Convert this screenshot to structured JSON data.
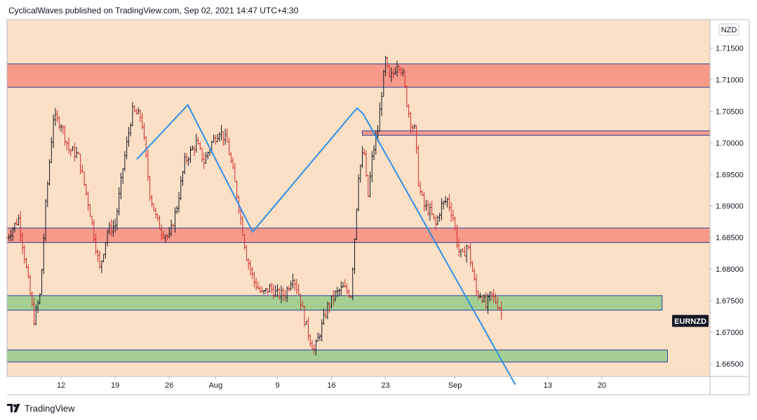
{
  "header": {
    "attribution": "CyclicalWaves published on TradingView.com, Sep 02, 2021 14:47 UTC+4:30"
  },
  "footer": {
    "brand": "TradingView"
  },
  "colors": {
    "background": "#fbe0c6",
    "resistance_zone": "#f89a8a",
    "support_zone": "#a5cf92",
    "zone_border": "#2b3f9a",
    "up_candle": "#131722",
    "down_candle": "#d12b2b",
    "trendline": "#2f8fe3"
  },
  "chart_data": {
    "type": "candlestick",
    "symbol": "EURNZD",
    "currency": "NZD",
    "x_ticks": [
      "12",
      "19",
      "26",
      "Aug",
      "9",
      "16",
      "23",
      "Sep",
      "13",
      "20"
    ],
    "x_tick_days": [
      12,
      19,
      26,
      32,
      40,
      47,
      54,
      63,
      75,
      82
    ],
    "x_range_days": [
      5,
      96
    ],
    "y_ticks": [
      "1.71500",
      "1.71000",
      "1.70500",
      "1.70000",
      "1.69500",
      "1.69000",
      "1.68500",
      "1.68000",
      "1.67500",
      "1.67000",
      "1.66500"
    ],
    "ylim": [
      1.663,
      1.7195
    ],
    "zones": [
      {
        "kind": "resistance",
        "low": 1.7088,
        "high": 1.7125,
        "day_start": 5,
        "day_end": 96
      },
      {
        "kind": "resistance",
        "low": 1.7012,
        "high": 1.7019,
        "day_start": 51,
        "day_end": 96
      },
      {
        "kind": "resistance",
        "low": 1.6842,
        "high": 1.6865,
        "day_start": 5,
        "day_end": 96
      },
      {
        "kind": "support",
        "low": 1.6735,
        "high": 1.6758,
        "day_start": 5,
        "day_end": 89.8
      },
      {
        "kind": "support",
        "low": 1.6653,
        "high": 1.6672,
        "day_start": 5,
        "day_end": 90.5
      }
    ],
    "zigzag": [
      {
        "day": 21.8,
        "price": 1.6974
      },
      {
        "day": 28.4,
        "price": 1.706
      },
      {
        "day": 36.8,
        "price": 1.6859
      },
      {
        "day": 50.3,
        "price": 1.7055
      },
      {
        "day": 51.1,
        "price": 1.7046
      },
      {
        "day": 70.8,
        "price": 1.6617
      }
    ],
    "path": [
      [
        5.0,
        1.685
      ],
      [
        6.5,
        1.688
      ],
      [
        7.5,
        1.68
      ],
      [
        8.5,
        1.672
      ],
      [
        9.3,
        1.676
      ],
      [
        10.0,
        1.69
      ],
      [
        11.0,
        1.704
      ],
      [
        12.0,
        1.703
      ],
      [
        13.0,
        1.699
      ],
      [
        14.2,
        1.698
      ],
      [
        15.6,
        1.69
      ],
      [
        17.0,
        1.68
      ],
      [
        18.0,
        1.686
      ],
      [
        19.0,
        1.687
      ],
      [
        20.0,
        1.696
      ],
      [
        21.2,
        1.705
      ],
      [
        22.4,
        1.704
      ],
      [
        23.5,
        1.692
      ],
      [
        24.3,
        1.688
      ],
      [
        25.0,
        1.686
      ],
      [
        26.0,
        1.685
      ],
      [
        27.0,
        1.69
      ],
      [
        28.0,
        1.697
      ],
      [
        29.5,
        1.7
      ],
      [
        30.5,
        1.697
      ],
      [
        31.5,
        1.7
      ],
      [
        32.5,
        1.702
      ],
      [
        33.5,
        1.7
      ],
      [
        34.3,
        1.695
      ],
      [
        35.0,
        1.69
      ],
      [
        36.0,
        1.682
      ],
      [
        37.0,
        1.678
      ],
      [
        38.0,
        1.676
      ],
      [
        39.0,
        1.677
      ],
      [
        40.0,
        1.676
      ],
      [
        41.0,
        1.676
      ],
      [
        42.0,
        1.679
      ],
      [
        42.8,
        1.676
      ],
      [
        43.5,
        1.672
      ],
      [
        44.2,
        1.669
      ],
      [
        44.8,
        1.667
      ],
      [
        45.5,
        1.67
      ],
      [
        46.5,
        1.674
      ],
      [
        47.5,
        1.676
      ],
      [
        48.5,
        1.677
      ],
      [
        49.5,
        1.676
      ],
      [
        50.0,
        1.685
      ],
      [
        50.5,
        1.695
      ],
      [
        51.2,
        1.699
      ],
      [
        51.7,
        1.691
      ],
      [
        52.3,
        1.698
      ],
      [
        53.0,
        1.702
      ],
      [
        53.5,
        1.708
      ],
      [
        54.0,
        1.713
      ],
      [
        54.5,
        1.71
      ],
      [
        55.0,
        1.711
      ],
      [
        55.6,
        1.713
      ],
      [
        56.2,
        1.711
      ],
      [
        56.8,
        1.706
      ],
      [
        57.3,
        1.703
      ],
      [
        57.8,
        1.702
      ],
      [
        58.3,
        1.693
      ],
      [
        59.0,
        1.69
      ],
      [
        59.8,
        1.689
      ],
      [
        60.5,
        1.687
      ],
      [
        61.2,
        1.69
      ],
      [
        62.0,
        1.691
      ],
      [
        62.8,
        1.688
      ],
      [
        63.4,
        1.683
      ],
      [
        64.0,
        1.682
      ],
      [
        64.6,
        1.684
      ],
      [
        65.2,
        1.68
      ],
      [
        65.8,
        1.676
      ],
      [
        66.4,
        1.676
      ],
      [
        67.0,
        1.674
      ],
      [
        67.6,
        1.676
      ],
      [
        68.2,
        1.675
      ],
      [
        68.8,
        1.674
      ],
      [
        69.0,
        1.673
      ],
      [
        69.2,
        1.6718
      ]
    ]
  }
}
